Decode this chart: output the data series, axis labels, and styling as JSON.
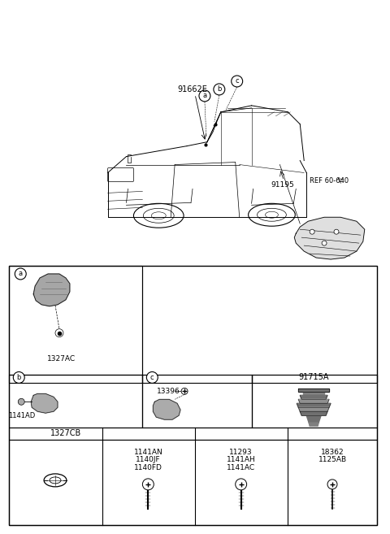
{
  "bg_color": "#ffffff",
  "labels": {
    "part_91662E": "91662E",
    "part_91195": "91195",
    "part_91715A": "91715A",
    "part_1327AC": "1327AC",
    "part_1141AD": "1141AD",
    "part_13396": "13396",
    "part_1327CB": "1327CB",
    "part_1141AN": "1141AN",
    "part_1140JF": "1140JF",
    "part_1140FD": "1140FD",
    "part_11293": "11293",
    "part_1141AH": "1141AH",
    "part_1141AC": "1141AC",
    "part_18362": "18362",
    "part_1125AB": "1125AB",
    "ref": "REF 60-640",
    "circle_a": "a",
    "circle_b": "b",
    "circle_c": "c"
  },
  "layout": {
    "fig_w": 4.8,
    "fig_h": 6.57,
    "dpi": 100
  }
}
